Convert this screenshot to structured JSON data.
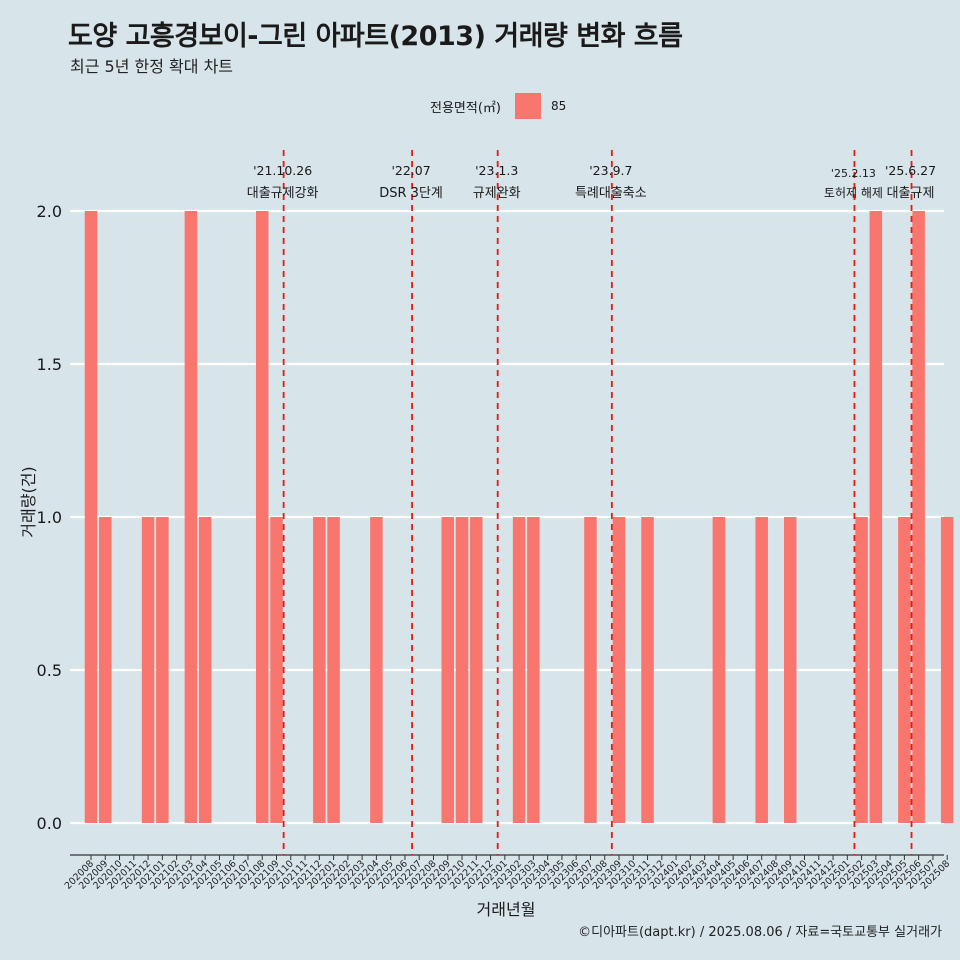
{
  "header": {
    "title": "도양 고흥경보이-그린 아파트(2013) 거래량 변화 흐름",
    "subtitle": "최근 5년 한정 확대 차트"
  },
  "legend": {
    "title": "전용면적(㎡)",
    "items": [
      {
        "label": "85",
        "color": "#F8766D"
      }
    ]
  },
  "caption": "©디아파트(dapt.kr) / 2025.08.06 / 자료=국토교통부 실거래가",
  "chart_data": {
    "type": "bar",
    "xlabel": "거래년월",
    "ylabel": "거래량(건)",
    "ylim": [
      0,
      2
    ],
    "yticks": [
      "0.0",
      "0.5",
      "1.0",
      "1.5",
      "2.0"
    ],
    "grid": "horizontal",
    "legend_position": "top",
    "bar_color": "#F8766D",
    "categories": [
      "202008",
      "202009",
      "202010",
      "202011",
      "202012",
      "202101",
      "202102",
      "202103",
      "202104",
      "202105",
      "202106",
      "202107",
      "202108",
      "202109",
      "202110",
      "202111",
      "202112",
      "202201",
      "202202",
      "202203",
      "202204",
      "202205",
      "202206",
      "202207",
      "202208",
      "202209",
      "202210",
      "202211",
      "202212",
      "202301",
      "202302",
      "202303",
      "202304",
      "202305",
      "202306",
      "202307",
      "202308",
      "202309",
      "202310",
      "202311",
      "202312",
      "202401",
      "202402",
      "202403",
      "202404",
      "202405",
      "202406",
      "202407",
      "202408",
      "202409",
      "202410",
      "202411",
      "202412",
      "202501",
      "202502",
      "202503",
      "202504",
      "202505",
      "202506",
      "202507",
      "202508"
    ],
    "series": [
      {
        "name": "85",
        "values": [
          2,
          1,
          0,
          0,
          1,
          1,
          0,
          2,
          1,
          0,
          0,
          0,
          2,
          1,
          0,
          0,
          1,
          1,
          0,
          0,
          1,
          0,
          0,
          0,
          0,
          1,
          1,
          1,
          0,
          0,
          1,
          1,
          0,
          0,
          0,
          1,
          0,
          1,
          0,
          1,
          0,
          0,
          0,
          0,
          1,
          0,
          0,
          1,
          0,
          1,
          0,
          0,
          0,
          0,
          1,
          2,
          0,
          1,
          2,
          0,
          1
        ]
      }
    ],
    "annotations": [
      {
        "date": "'21.10.26",
        "text": "대출규제강화",
        "after_index": 13.5,
        "style": "dashed",
        "color": "#E8190E"
      },
      {
        "date": "'22.07",
        "text": "DSR 3단계",
        "after_index": 22.5,
        "style": "dashed",
        "color": "#E8190E"
      },
      {
        "date": "'23.1.3",
        "text": "규제완화",
        "after_index": 28.5,
        "style": "dashed",
        "color": "#E8190E"
      },
      {
        "date": "'23.9.7",
        "text": "특례대출축소",
        "after_index": 36.5,
        "style": "dashed",
        "color": "#E8190E"
      },
      {
        "date": "'25.2.13",
        "text": "토허제 해제",
        "after_index": 53.5,
        "style": "dashed",
        "color": "#E8190E"
      },
      {
        "date": "'25.6.27",
        "text": "대출규제",
        "after_index": 57.5,
        "style": "dashed",
        "color": "#E8190E"
      }
    ]
  }
}
